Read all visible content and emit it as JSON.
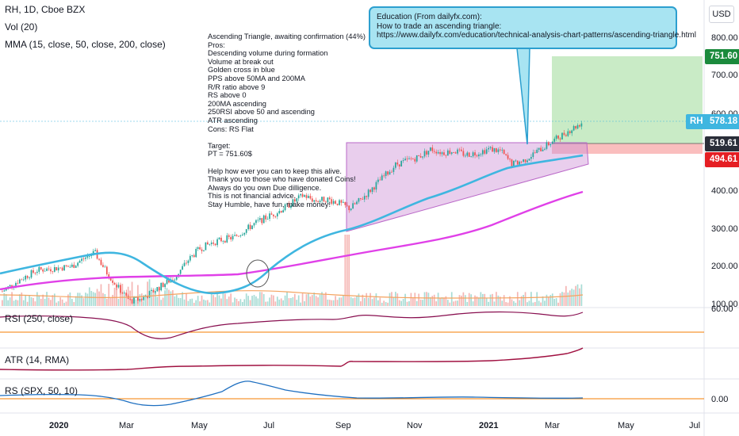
{
  "header": {
    "symbol": "RH, 1D, Cboe BZX",
    "volume": "Vol (20)",
    "mma": "MMA (15, close, 50, close, 200, close)"
  },
  "notes": {
    "lines": [
      "Ascending Triangle, awaiting confirmation (44%)",
      "Pros:",
      "Descending volume during formation",
      "Volume at break out",
      "Golden cross in blue",
      "PPS above 50MA and 200MA",
      "R/R ratio above 9",
      "RS above 0",
      "200MA ascending",
      "250RSI above 50 and ascending",
      "ATR ascending",
      "Cons: RS Flat",
      "",
      "Target:",
      "PT = 751.60$",
      "",
      "Help how ever you can to keep this alive.",
      "Thank you to those who have donated Coins!",
      "Always do you own Due dilligence.",
      "This is not financial advice.",
      "Stay Humble, have fun, make money!"
    ]
  },
  "callout": {
    "line1": "Education (From dailyfx.com):",
    "line2": "How to trade an ascending triangle:",
    "line3": "https://www.dailyfx.com/education/technical-analysis-chart-patterns/ascending-triangle.html"
  },
  "currency": "USD",
  "price_tags": {
    "target": "751.60",
    "symbol": "RH",
    "last": "578.18",
    "entry": "519.61",
    "stop": "494.61"
  },
  "panes": {
    "rsi": "RSI (250, close)",
    "rsi_level": "60.00",
    "atr": "ATR (14, RMA)",
    "rs": "RS (SPX, 50, 10)",
    "rs_level": "0.00"
  },
  "colors": {
    "up": "#26a69a",
    "down": "#ef5350",
    "ma15": "#f4a460",
    "ma50": "#3fb6e0",
    "ma200": "#e040e8",
    "triangle": "#ce93d8",
    "target_zone": "#a5dea0",
    "stop_zone": "#f8a8a8",
    "rsi": "#880e4f",
    "atr": "#a01040",
    "rs": "#1e6fc0",
    "level": "#f57c00"
  },
  "chart_data": {
    "type": "candlestick",
    "price_axis": {
      "ticks": [
        100,
        200,
        300,
        400,
        500,
        600,
        700,
        800
      ],
      "range": [
        100,
        860
      ]
    },
    "time_axis": [
      "2020",
      "Mar",
      "May",
      "Jul",
      "Sep",
      "Nov",
      "2021",
      "Mar",
      "May",
      "Jul"
    ],
    "close_path": [
      [
        0,
        140
      ],
      [
        0.03,
        170
      ],
      [
        0.06,
        195
      ],
      [
        0.09,
        200
      ],
      [
        0.12,
        205
      ],
      [
        0.14,
        225
      ],
      [
        0.16,
        240
      ],
      [
        0.18,
        190
      ],
      [
        0.2,
        150
      ],
      [
        0.22,
        115
      ],
      [
        0.24,
        120
      ],
      [
        0.26,
        140
      ],
      [
        0.28,
        160
      ],
      [
        0.3,
        180
      ],
      [
        0.32,
        220
      ],
      [
        0.34,
        250
      ],
      [
        0.36,
        265
      ],
      [
        0.38,
        275
      ],
      [
        0.4,
        280
      ],
      [
        0.42,
        300
      ],
      [
        0.44,
        320
      ],
      [
        0.46,
        335
      ],
      [
        0.48,
        350
      ],
      [
        0.5,
        370
      ],
      [
        0.52,
        390
      ],
      [
        0.54,
        375
      ],
      [
        0.56,
        380
      ],
      [
        0.58,
        370
      ],
      [
        0.6,
        355
      ],
      [
        0.62,
        380
      ],
      [
        0.64,
        410
      ],
      [
        0.66,
        440
      ],
      [
        0.68,
        470
      ],
      [
        0.7,
        480
      ],
      [
        0.72,
        490
      ],
      [
        0.74,
        510
      ],
      [
        0.76,
        500
      ],
      [
        0.78,
        505
      ],
      [
        0.8,
        495
      ],
      [
        0.82,
        500
      ],
      [
        0.84,
        510
      ],
      [
        0.86,
        505
      ],
      [
        0.88,
        470
      ],
      [
        0.9,
        480
      ],
      [
        0.92,
        500
      ],
      [
        0.94,
        520
      ],
      [
        0.96,
        540
      ],
      [
        1.0,
        578
      ]
    ],
    "levels": {
      "target": 751.6,
      "last": 578.18,
      "entry": 519.61,
      "stop": 494.61
    }
  }
}
